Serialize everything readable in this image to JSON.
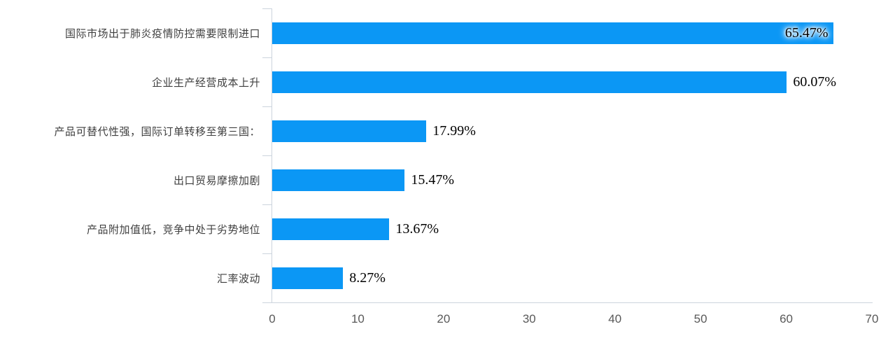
{
  "chart_data": {
    "type": "bar",
    "orientation": "horizontal",
    "title": "",
    "xlabel": "",
    "ylabel": "",
    "categories": [
      "国际市场出于肺炎疫情防控需要限制进口",
      "企业生产经营成本上升",
      "产品可替代性强，国际订单转移至第三国：",
      "出口贸易摩擦加剧",
      "产品附加值低，竞争中处于劣势地位",
      "汇率波动"
    ],
    "values": [
      65.47,
      60.07,
      17.99,
      15.47,
      13.67,
      8.27
    ],
    "value_labels": [
      "65.47%",
      "60.07%",
      "17.99%",
      "15.47%",
      "13.67%",
      "8.27%"
    ],
    "x_ticks": [
      "0",
      "10",
      "20",
      "30",
      "40",
      "50",
      "60",
      "70"
    ],
    "x_tick_values": [
      0,
      10,
      20,
      30,
      40,
      50,
      60,
      70
    ],
    "xlim": [
      0,
      70
    ],
    "grid": false,
    "legend": "none",
    "bar_color": "#0b97f5",
    "axis_color": "#ccd4dd",
    "value_label_position": "end-of-bar, first label inside bar with white glow"
  }
}
